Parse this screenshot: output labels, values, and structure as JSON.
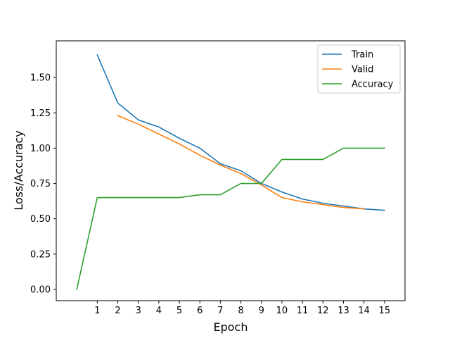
{
  "chart_data": {
    "type": "line",
    "xlabel": "Epoch",
    "ylabel": "Loss/Accuracy",
    "xlim": [
      -1,
      16
    ],
    "ylim": [
      -0.08,
      1.76
    ],
    "xticks": [
      1,
      2,
      3,
      4,
      5,
      6,
      7,
      8,
      9,
      10,
      11,
      12,
      13,
      14,
      15
    ],
    "yticks": [
      0.0,
      0.25,
      0.5,
      0.75,
      1.0,
      1.25,
      1.5
    ],
    "ytick_labels": [
      "0.00",
      "0.25",
      "0.50",
      "0.75",
      "1.00",
      "1.25",
      "1.50"
    ],
    "grid": false,
    "legend_position": "top-right",
    "series": [
      {
        "name": "Train",
        "color": "#1f77b4",
        "x": [
          1,
          2,
          3,
          4,
          5,
          6,
          7,
          8,
          9,
          10,
          11,
          12,
          13,
          14,
          15
        ],
        "values": [
          1.66,
          1.32,
          1.2,
          1.15,
          1.07,
          1.0,
          0.89,
          0.84,
          0.75,
          0.69,
          0.64,
          0.61,
          0.59,
          0.57,
          0.56
        ]
      },
      {
        "name": "Valid",
        "color": "#ff7f0e",
        "x": [
          2,
          3,
          4,
          5,
          6,
          7,
          8,
          9,
          10,
          11,
          12,
          13,
          14
        ],
        "values": [
          1.23,
          1.17,
          1.1,
          1.03,
          0.95,
          0.88,
          0.82,
          0.74,
          0.65,
          0.62,
          0.6,
          0.58,
          0.57
        ]
      },
      {
        "name": "Accuracy",
        "color": "#2ca02c",
        "x": [
          0,
          1,
          2,
          3,
          4,
          5,
          6,
          7,
          8,
          9,
          10,
          11,
          12,
          13,
          14,
          15
        ],
        "values": [
          0.0,
          0.65,
          0.65,
          0.65,
          0.65,
          0.65,
          0.67,
          0.67,
          0.75,
          0.75,
          0.92,
          0.92,
          0.92,
          1.0,
          1.0,
          1.0
        ]
      }
    ]
  }
}
